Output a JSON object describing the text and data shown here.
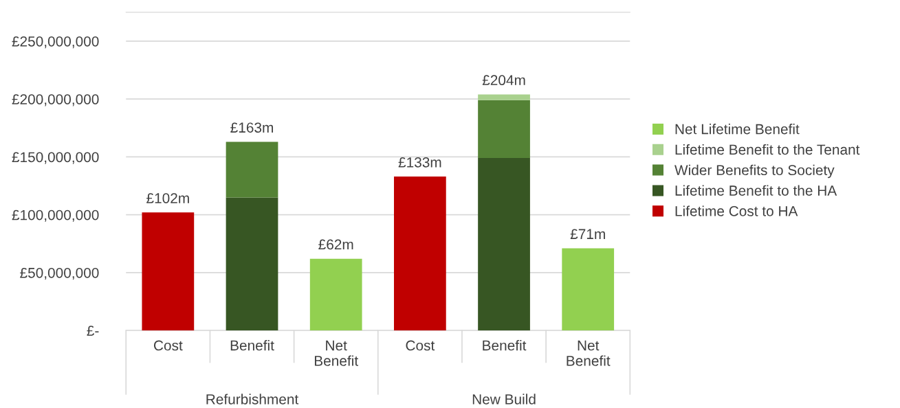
{
  "chart_data": {
    "type": "bar",
    "stacked": true,
    "categories": [
      "Cost",
      "Benefit",
      "Net\nBenefit",
      "Cost",
      "Benefit",
      "Net\nBenefit"
    ],
    "annotations": [
      "Refurbishment",
      "New Build"
    ],
    "series": [
      {
        "name": "Lifetime Cost to HA",
        "color": "#c00000",
        "values": [
          102000000,
          null,
          null,
          133000000,
          null,
          null
        ]
      },
      {
        "name": "Lifetime Benefit to the HA",
        "color": "#375623",
        "values": [
          null,
          115000000,
          null,
          null,
          149000000,
          null
        ]
      },
      {
        "name": "Wider Benefits to Society",
        "color": "#548235",
        "values": [
          null,
          48000000,
          null,
          null,
          50000000,
          null
        ]
      },
      {
        "name": "Lifetime Benefit to the Tenant",
        "color": "#a9d18e",
        "values": [
          null,
          null,
          null,
          null,
          5000000,
          null
        ]
      },
      {
        "name": "Net Lifetime Benefit",
        "color": "#92d050",
        "values": [
          null,
          null,
          62000000,
          null,
          null,
          71000000
        ]
      }
    ],
    "totals": [
      "£102m",
      "£163m",
      "£62m",
      "£133m",
      "£204m",
      "£71m"
    ],
    "ylim": [
      0,
      275000000
    ],
    "yticks": [
      {
        "value": 0,
        "label": "£-"
      },
      {
        "value": 50000000,
        "label": "£50,000,000"
      },
      {
        "value": 100000000,
        "label": "£100,000,000"
      },
      {
        "value": 150000000,
        "label": "£150,000,000"
      },
      {
        "value": 200000000,
        "label": "£200,000,000"
      },
      {
        "value": 250000000,
        "label": "£250,000,000"
      }
    ],
    "grid": "y",
    "legend": "right"
  }
}
